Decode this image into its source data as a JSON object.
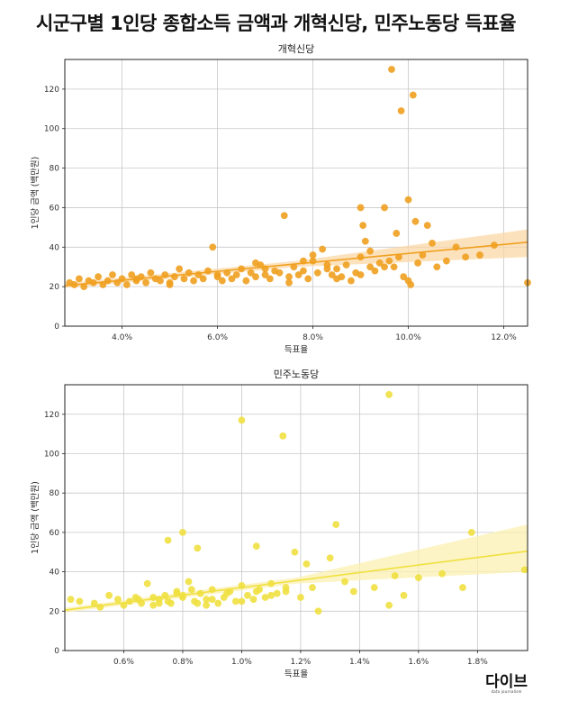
{
  "page": {
    "title": "시군구별 1인당 종합소득 금액과 개혁신당, 민주노동당 득표율"
  },
  "logo": {
    "main": "다이브",
    "sub": "data journalism"
  },
  "chart_data": [
    {
      "type": "scatter",
      "title": "개혁신당",
      "xlabel": "득표율",
      "ylabel": "1인당 금액 (백만원)",
      "xlim": [
        2.8,
        12.5
      ],
      "ylim": [
        0,
        135
      ],
      "xticks": [
        4,
        6,
        8,
        10,
        12
      ],
      "xtick_labels": [
        "4.0%",
        "6.0%",
        "8.0%",
        "10.0%",
        "12.0%"
      ],
      "yticks": [
        0,
        20,
        40,
        60,
        80,
        100,
        120
      ],
      "color": "#f0a020",
      "band_color": "#fbd8a6",
      "regression": {
        "x": [
          2.8,
          12.5
        ],
        "y": [
          20.5,
          42.5
        ],
        "band_lo_end": 35,
        "band_hi_end": 49
      },
      "grid": true,
      "points": [
        [
          2.9,
          22
        ],
        [
          3.0,
          21
        ],
        [
          3.1,
          24
        ],
        [
          3.2,
          20
        ],
        [
          3.3,
          23
        ],
        [
          3.4,
          22
        ],
        [
          3.5,
          25
        ],
        [
          3.6,
          21
        ],
        [
          3.7,
          23
        ],
        [
          3.8,
          26
        ],
        [
          3.9,
          22
        ],
        [
          4.0,
          24
        ],
        [
          4.1,
          21
        ],
        [
          4.2,
          26
        ],
        [
          4.3,
          23
        ],
        [
          4.4,
          25
        ],
        [
          4.5,
          22
        ],
        [
          4.6,
          27
        ],
        [
          4.7,
          24
        ],
        [
          4.8,
          23
        ],
        [
          4.9,
          26
        ],
        [
          5.0,
          22
        ],
        [
          5.1,
          25
        ],
        [
          5.2,
          29
        ],
        [
          5.3,
          24
        ],
        [
          5.4,
          27
        ],
        [
          5.5,
          23
        ],
        [
          5.6,
          26
        ],
        [
          5.7,
          24
        ],
        [
          5.8,
          28
        ],
        [
          5.9,
          40
        ],
        [
          6.0,
          25
        ],
        [
          6.1,
          23
        ],
        [
          6.2,
          27
        ],
        [
          6.3,
          24
        ],
        [
          6.4,
          26
        ],
        [
          6.5,
          29
        ],
        [
          6.6,
          23
        ],
        [
          6.7,
          27
        ],
        [
          6.8,
          25
        ],
        [
          6.9,
          31
        ],
        [
          7.0,
          26
        ],
        [
          7.1,
          24
        ],
        [
          7.2,
          28
        ],
        [
          7.3,
          27
        ],
        [
          7.4,
          56
        ],
        [
          7.5,
          25
        ],
        [
          7.6,
          30
        ],
        [
          7.7,
          26
        ],
        [
          7.8,
          28
        ],
        [
          7.9,
          24
        ],
        [
          8.0,
          33
        ],
        [
          8.1,
          27
        ],
        [
          8.2,
          39
        ],
        [
          8.3,
          31
        ],
        [
          8.4,
          26
        ],
        [
          8.5,
          29
        ],
        [
          8.6,
          25
        ],
        [
          8.7,
          31
        ],
        [
          8.8,
          23
        ],
        [
          8.9,
          27
        ],
        [
          9.0,
          35
        ],
        [
          9.0,
          60
        ],
        [
          9.05,
          51
        ],
        [
          9.1,
          43
        ],
        [
          9.2,
          30
        ],
        [
          9.3,
          28
        ],
        [
          9.4,
          32
        ],
        [
          9.5,
          60
        ],
        [
          9.6,
          33
        ],
        [
          9.65,
          130
        ],
        [
          9.7,
          30
        ],
        [
          9.75,
          47
        ],
        [
          9.8,
          35
        ],
        [
          9.85,
          109
        ],
        [
          9.9,
          25
        ],
        [
          10.0,
          64
        ],
        [
          10.05,
          21
        ],
        [
          10.1,
          117
        ],
        [
          10.15,
          53
        ],
        [
          10.2,
          32
        ],
        [
          10.3,
          36
        ],
        [
          10.4,
          51
        ],
        [
          10.5,
          42
        ],
        [
          10.6,
          30
        ],
        [
          10.8,
          33
        ],
        [
          11.0,
          40
        ],
        [
          11.2,
          35
        ],
        [
          11.5,
          36
        ],
        [
          11.8,
          41
        ],
        [
          12.5,
          22
        ],
        [
          4.3,
          24
        ],
        [
          5.0,
          21
        ],
        [
          6.0,
          26
        ],
        [
          7.0,
          29
        ],
        [
          7.5,
          22
        ],
        [
          8.0,
          36
        ],
        [
          8.5,
          24
        ],
        [
          9.0,
          26
        ],
        [
          9.5,
          30
        ],
        [
          10.0,
          23
        ],
        [
          6.8,
          32
        ],
        [
          7.8,
          33
        ],
        [
          8.3,
          29
        ],
        [
          9.2,
          38
        ]
      ]
    },
    {
      "type": "scatter",
      "title": "민주노동당",
      "xlabel": "득표율",
      "ylabel": "1인당 금액 (백만원)",
      "xlim": [
        0.4,
        1.97
      ],
      "ylim": [
        0,
        135
      ],
      "xticks": [
        0.6,
        0.8,
        1.0,
        1.2,
        1.4,
        1.6,
        1.8
      ],
      "xtick_labels": [
        "0.6%",
        "0.8%",
        "1.0%",
        "1.2%",
        "1.4%",
        "1.6%",
        "1.8%"
      ],
      "yticks": [
        0,
        20,
        40,
        60,
        80,
        100,
        120
      ],
      "color": "#f0e040",
      "band_color": "#fbf0b0",
      "regression": {
        "x": [
          0.4,
          1.97
        ],
        "y": [
          20.5,
          50.5
        ],
        "band_lo_end": 40,
        "band_hi_end": 64
      },
      "grid": true,
      "points": [
        [
          0.42,
          26
        ],
        [
          0.45,
          25
        ],
        [
          0.5,
          24
        ],
        [
          0.52,
          22
        ],
        [
          0.55,
          28
        ],
        [
          0.58,
          26
        ],
        [
          0.6,
          23
        ],
        [
          0.62,
          25
        ],
        [
          0.64,
          27
        ],
        [
          0.66,
          24
        ],
        [
          0.68,
          34
        ],
        [
          0.7,
          23
        ],
        [
          0.72,
          26
        ],
        [
          0.74,
          28
        ],
        [
          0.75,
          56
        ],
        [
          0.76,
          24
        ],
        [
          0.78,
          30
        ],
        [
          0.8,
          60
        ],
        [
          0.8,
          27
        ],
        [
          0.82,
          35
        ],
        [
          0.84,
          25
        ],
        [
          0.85,
          52
        ],
        [
          0.86,
          29
        ],
        [
          0.88,
          26
        ],
        [
          0.9,
          31
        ],
        [
          0.92,
          24
        ],
        [
          0.94,
          27
        ],
        [
          0.96,
          30
        ],
        [
          0.98,
          25
        ],
        [
          1.0,
          117
        ],
        [
          1.0,
          33
        ],
        [
          1.02,
          28
        ],
        [
          1.04,
          26
        ],
        [
          1.05,
          53
        ],
        [
          1.06,
          31
        ],
        [
          1.08,
          27
        ],
        [
          1.1,
          34
        ],
        [
          1.12,
          29
        ],
        [
          1.14,
          109
        ],
        [
          1.15,
          30
        ],
        [
          1.18,
          50
        ],
        [
          1.2,
          27
        ],
        [
          1.22,
          44
        ],
        [
          1.24,
          32
        ],
        [
          1.26,
          20
        ],
        [
          1.3,
          47
        ],
        [
          1.32,
          64
        ],
        [
          1.35,
          35
        ],
        [
          1.38,
          30
        ],
        [
          1.45,
          32
        ],
        [
          1.5,
          23
        ],
        [
          1.5,
          130
        ],
        [
          1.52,
          38
        ],
        [
          1.55,
          28
        ],
        [
          1.6,
          37
        ],
        [
          1.68,
          39
        ],
        [
          1.75,
          32
        ],
        [
          1.78,
          60
        ],
        [
          1.96,
          41
        ],
        [
          0.7,
          27
        ],
        [
          0.75,
          25
        ],
        [
          0.8,
          28
        ],
        [
          0.85,
          24
        ],
        [
          0.9,
          26
        ],
        [
          0.95,
          29
        ],
        [
          1.0,
          25
        ],
        [
          1.05,
          30
        ],
        [
          1.1,
          28
        ],
        [
          1.15,
          32
        ],
        [
          0.65,
          26
        ],
        [
          0.72,
          24
        ],
        [
          0.78,
          29
        ],
        [
          0.83,
          31
        ],
        [
          0.88,
          23
        ]
      ]
    }
  ]
}
